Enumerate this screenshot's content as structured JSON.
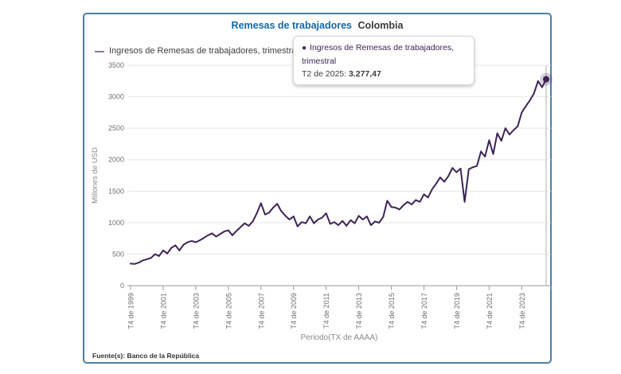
{
  "card": {
    "title_main": "Remesas de trabajadores",
    "title_sub": "Colombia",
    "legend": {
      "marker": "—",
      "label": "Ingresos de Remesas de trabajadores, trimestral"
    },
    "tooltip": {
      "bullet": "●",
      "series": "Ingresos de Remesas de trabajadores, trimestral",
      "period_label": "T2 de 2025:",
      "value": "3.277,47"
    },
    "footer": "Fuente(s): Banco de la República"
  },
  "chart_data": {
    "type": "line",
    "title": "Remesas de trabajadores Colombia",
    "ylabel": "Millones de USD",
    "xlabel": "Periodo(TX de AAAA)",
    "ylim": [
      0,
      3500
    ],
    "yticks": [
      0,
      500,
      1000,
      1500,
      2000,
      2500,
      3000,
      3500
    ],
    "xticks": [
      "T4 de 1999",
      "T4 de 2001",
      "T4 de 2003",
      "T4 de 2005",
      "T4 de 2007",
      "T4 de 2009",
      "T4 de 2011",
      "T4 de 2013",
      "T4 de 2015",
      "T4 de 2017",
      "T4 de 2019",
      "T4 de 2021",
      "T4 de 2023"
    ],
    "xtick_every": 8,
    "grid": true,
    "legend_position": "top-left",
    "frequency": "trimestral",
    "x_first": "T4 de 1999",
    "x_last": "T2 de 2025",
    "series": [
      {
        "name": "Ingresos de Remesas de trabajadores, trimestral",
        "values": [
          350,
          345,
          365,
          400,
          420,
          440,
          500,
          470,
          560,
          510,
          600,
          640,
          560,
          650,
          690,
          710,
          690,
          720,
          760,
          800,
          830,
          780,
          820,
          860,
          880,
          800,
          870,
          930,
          990,
          950,
          1020,
          1150,
          1310,
          1130,
          1160,
          1240,
          1300,
          1180,
          1110,
          1050,
          1100,
          940,
          1010,
          990,
          1100,
          990,
          1050,
          1080,
          1150,
          980,
          1010,
          960,
          1030,
          950,
          1040,
          990,
          1110,
          1050,
          1100,
          960,
          1020,
          1000,
          1090,
          1350,
          1250,
          1240,
          1210,
          1280,
          1330,
          1290,
          1360,
          1330,
          1450,
          1400,
          1530,
          1620,
          1720,
          1650,
          1740,
          1870,
          1800,
          1860,
          1330,
          1850,
          1880,
          1900,
          2130,
          2050,
          2310,
          2090,
          2420,
          2300,
          2500,
          2400,
          2470,
          2530,
          2750,
          2850,
          2940,
          3050,
          3250,
          3150,
          3277.47
        ]
      }
    ],
    "last_point": {
      "label": "T2 de 2025",
      "value": 3277.47
    },
    "colors": {
      "line": "#3e2355",
      "grid": "#e6e6e6",
      "axis": "#999999",
      "crosshair": "#cccccc",
      "tick_text": "#6f6f6f",
      "axis_title": "#8a8a8a",
      "halo": "rgba(62,35,85,0.22)",
      "title_blue": "#1566a9",
      "card_border": "#4d7fa3"
    }
  }
}
